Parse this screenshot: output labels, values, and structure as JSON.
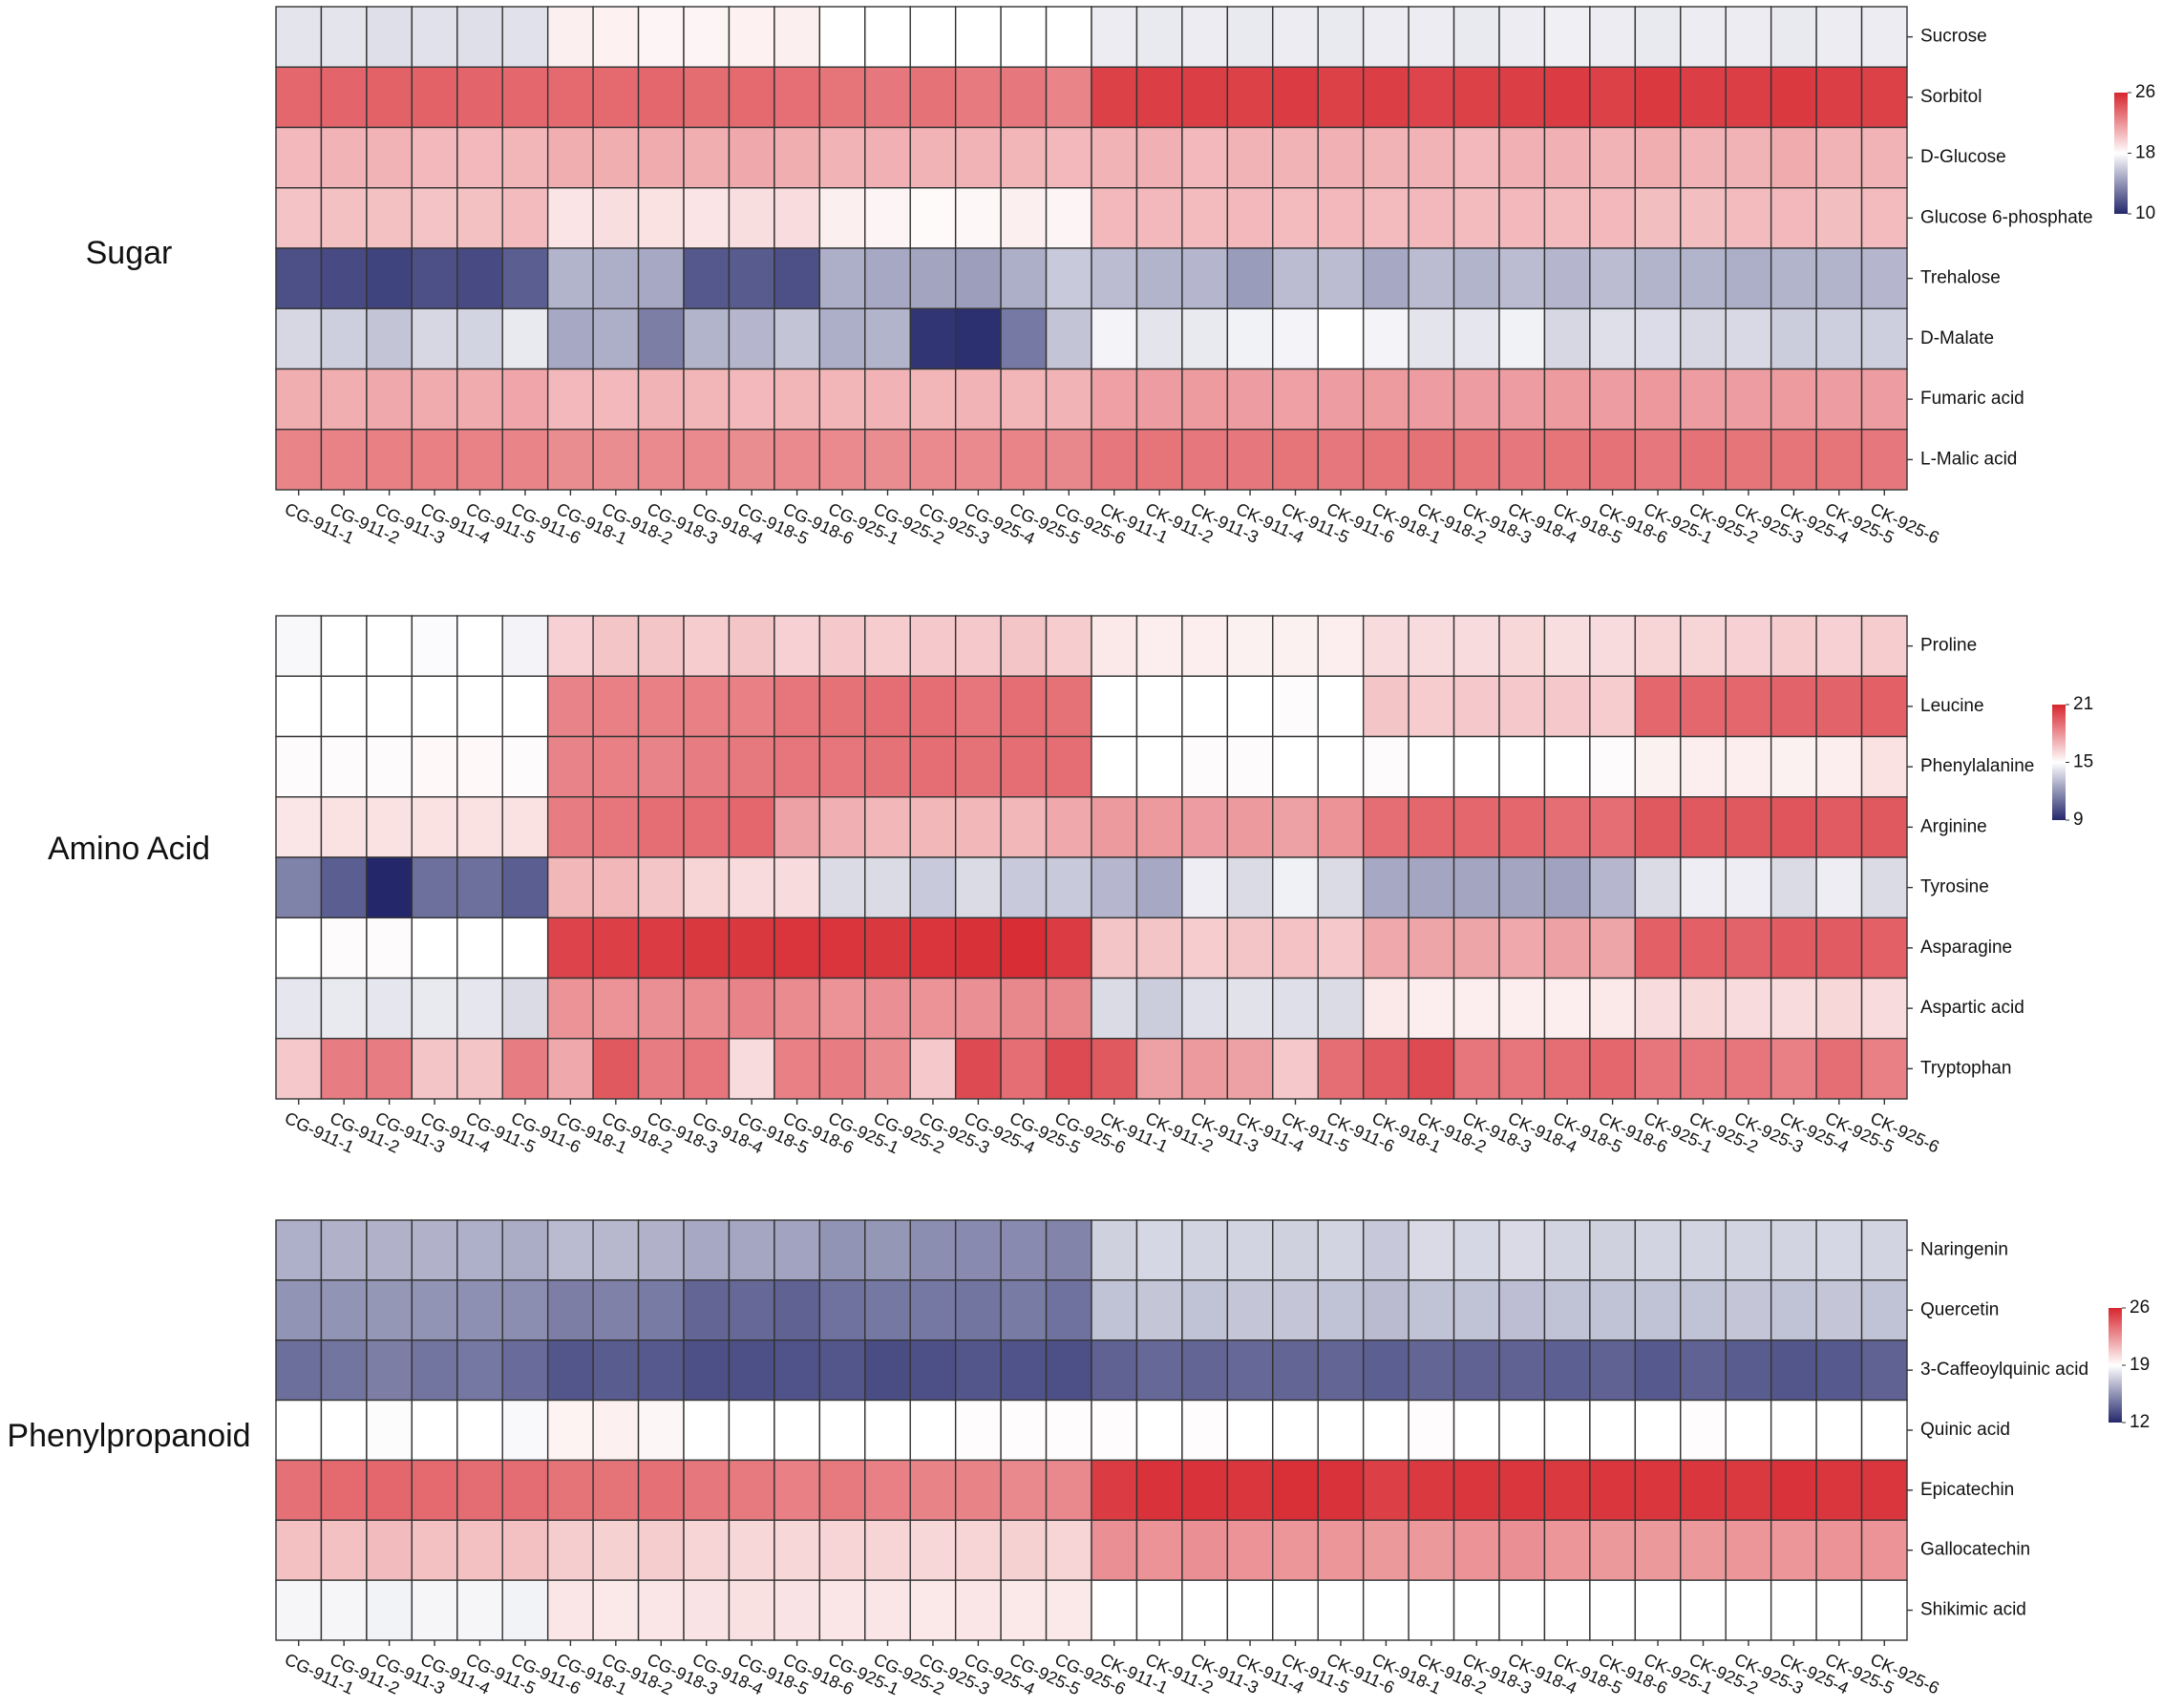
{
  "chart_data": [
    {
      "type": "heatmap",
      "title": "Sugar",
      "categories": [
        "CG-911-1",
        "CG-911-2",
        "CG-911-3",
        "CG-911-4",
        "CG-911-5",
        "CG-911-6",
        "CG-918-1",
        "CG-918-2",
        "CG-918-3",
        "CG-918-4",
        "CG-918-5",
        "CG-918-6",
        "CG-925-1",
        "CG-925-2",
        "CG-925-3",
        "CG-925-4",
        "CG-925-5",
        "CG-925-6",
        "CK-911-1",
        "CK-911-2",
        "CK-911-3",
        "CK-911-4",
        "CK-911-5",
        "CK-911-6",
        "CK-918-1",
        "CK-918-2",
        "CK-918-3",
        "CK-918-4",
        "CK-918-5",
        "CK-918-6",
        "CK-925-1",
        "CK-925-2",
        "CK-925-3",
        "CK-925-4",
        "CK-925-5",
        "CK-925-6"
      ],
      "rows": [
        "Sucrose",
        "Sorbitol",
        "D-Glucose",
        "Glucose 6-phosphate",
        "Trehalose",
        "D-Malate",
        "Fumaric acid",
        "L-Malic acid"
      ],
      "values": [
        [
          17,
          17,
          16.8,
          16.9,
          16.8,
          16.9,
          18.6,
          18.5,
          18.4,
          18.4,
          18.5,
          18.6,
          18,
          18,
          18,
          18,
          18,
          18,
          17.3,
          17.2,
          17.3,
          17.2,
          17.3,
          17.2,
          17.3,
          17.3,
          17.2,
          17.3,
          17.4,
          17.3,
          17.2,
          17.3,
          17.3,
          17.2,
          17.3,
          17.3
        ],
        [
          23.6,
          23.7,
          23.8,
          23.8,
          23.7,
          23.6,
          23.5,
          23.5,
          23.6,
          23.4,
          23.5,
          23.3,
          23.1,
          23,
          23.2,
          22.9,
          23,
          22.5,
          25,
          25.1,
          25.1,
          25,
          25.2,
          25,
          25.1,
          24.9,
          25,
          25.1,
          25.2,
          25,
          25.3,
          25.1,
          25.1,
          25.3,
          25.1,
          25
        ],
        [
          20.6,
          20.8,
          20.8,
          20.6,
          20.6,
          20.7,
          21,
          21,
          21.1,
          21,
          21.2,
          21,
          20.8,
          20.9,
          20.8,
          20.8,
          20.7,
          20.6,
          20.8,
          20.9,
          20.6,
          20.8,
          20.8,
          20.9,
          20.8,
          20.8,
          20.6,
          20.9,
          20.9,
          20.8,
          21,
          20.8,
          20.8,
          21.1,
          20.8,
          20.8
        ],
        [
          20.2,
          20.3,
          20.3,
          20.2,
          20.3,
          20.5,
          19,
          19.2,
          19.1,
          19,
          19.2,
          19.3,
          18.6,
          18.4,
          18.2,
          18.3,
          18.6,
          18.4,
          20.6,
          20.6,
          20.5,
          20.6,
          20.5,
          20.6,
          20.5,
          20.6,
          20.5,
          20.6,
          20.5,
          20.6,
          20.4,
          20.4,
          20.5,
          20.6,
          20.4,
          20.5
        ],
        [
          11.5,
          11.3,
          11,
          11.5,
          11.3,
          12,
          15.2,
          15,
          14.8,
          11.8,
          11.9,
          11.5,
          15,
          14.8,
          14.6,
          14.4,
          15,
          16,
          15.5,
          15.2,
          15.3,
          14.3,
          15.5,
          15.5,
          14.8,
          15.5,
          15.2,
          15.5,
          15.3,
          15.5,
          15.2,
          15.2,
          15,
          15.2,
          15.2,
          15.3
        ],
        [
          16.5,
          16.2,
          15.8,
          16.5,
          16.4,
          17.2,
          14.8,
          15,
          13.2,
          15.2,
          15.3,
          15.8,
          15,
          15.2,
          10.5,
          10.3,
          13,
          15.8,
          17.6,
          17,
          17.2,
          17.5,
          17.6,
          18,
          17.6,
          17,
          17.1,
          17.5,
          16.5,
          16.8,
          16.7,
          16.5,
          16.6,
          16.1,
          16.2,
          16.2
        ],
        [
          21,
          21,
          21.2,
          21.1,
          21.1,
          21.3,
          20.6,
          20.6,
          20.8,
          20.7,
          20.6,
          20.7,
          20.7,
          20.8,
          20.7,
          20.8,
          20.7,
          20.8,
          21.5,
          21.6,
          21.7,
          21.6,
          21.5,
          21.6,
          21.7,
          21.6,
          21.6,
          21.6,
          21.7,
          21.6,
          21.8,
          21.6,
          21.6,
          21.7,
          21.6,
          21.6
        ],
        [
          22.5,
          22.6,
          22.7,
          22.7,
          22.6,
          22.5,
          22.2,
          22.2,
          22.3,
          22.3,
          22.2,
          22.3,
          22.3,
          22.2,
          22.3,
          22.3,
          22.5,
          22.4,
          23,
          23.1,
          23,
          23,
          23.1,
          23,
          23.1,
          23.2,
          23.1,
          23,
          23.1,
          23.2,
          23,
          23.2,
          23.1,
          23.1,
          23.1,
          23
        ]
      ],
      "zlim": [
        10,
        26
      ],
      "zticks": [
        10,
        18,
        26
      ],
      "colors": [
        "#24286b",
        "#ffffff",
        "#d7262e"
      ]
    },
    {
      "type": "heatmap",
      "title": "Amino Acid",
      "categories": [
        "CG-911-1",
        "CG-911-2",
        "CG-911-3",
        "CG-911-4",
        "CG-911-5",
        "CG-911-6",
        "CG-918-1",
        "CG-918-2",
        "CG-918-3",
        "CG-918-4",
        "CG-918-5",
        "CG-918-6",
        "CG-925-1",
        "CG-925-2",
        "CG-925-3",
        "CG-925-4",
        "CG-925-5",
        "CG-925-6",
        "CK-911-1",
        "CK-911-2",
        "CK-911-3",
        "CK-911-4",
        "CK-911-5",
        "CK-911-6",
        "CK-918-1",
        "CK-918-2",
        "CK-918-3",
        "CK-918-4",
        "CK-918-5",
        "CK-918-6",
        "CK-925-1",
        "CK-925-2",
        "CK-925-3",
        "CK-925-4",
        "CK-925-5",
        "CK-925-6"
      ],
      "rows": [
        "Proline",
        "Leucine",
        "Phenylalanine",
        "Arginine",
        "Tyrosine",
        "Asparagine",
        "Aspartic acid",
        "Tryptophan"
      ],
      "values": [
        [
          14.8,
          15,
          15,
          14.9,
          15,
          14.7,
          16.3,
          16.6,
          16.6,
          16.4,
          16.6,
          16.3,
          16.5,
          16.4,
          16.5,
          16.5,
          16.6,
          16.4,
          15.6,
          15.5,
          15.5,
          15.4,
          15.4,
          15.5,
          16,
          16,
          16,
          16.1,
          15.9,
          16,
          16.2,
          16.2,
          16.3,
          16.4,
          16.3,
          16.4
        ],
        [
          15,
          15,
          15,
          15,
          15,
          15,
          18.4,
          18.5,
          18.5,
          18.5,
          18.5,
          18.8,
          18.9,
          19,
          19,
          18.8,
          19,
          18.9,
          15,
          15,
          15,
          15,
          15.1,
          15,
          16.6,
          16.4,
          16.5,
          16.5,
          16.5,
          16.4,
          19.2,
          19.2,
          19.2,
          19.3,
          19.3,
          19.4
        ],
        [
          15.1,
          15.1,
          15.1,
          15.2,
          15.2,
          15.1,
          18.4,
          18.5,
          18.4,
          18.6,
          18.7,
          18.8,
          18.8,
          18.9,
          19,
          18.9,
          19,
          19,
          15,
          15,
          15.1,
          15.1,
          15,
          15,
          15.1,
          15,
          15,
          15,
          15,
          15.1,
          15.4,
          15.5,
          15.5,
          15.4,
          15.5,
          15.8
        ],
        [
          15.7,
          15.8,
          15.8,
          15.8,
          15.8,
          15.8,
          18.6,
          18.8,
          19,
          19,
          19.2,
          17.6,
          17.2,
          17,
          17,
          17,
          17,
          17.4,
          17.8,
          17.8,
          17.7,
          17.8,
          17.6,
          18,
          19,
          19.2,
          19.2,
          19.2,
          19,
          19,
          19.6,
          19.6,
          19.6,
          19.7,
          19.5,
          19.6
        ],
        [
          11.5,
          10.5,
          9,
          11,
          11,
          10.5,
          17,
          17,
          16.6,
          16.2,
          16,
          16,
          14,
          14,
          13.5,
          14,
          13.5,
          13.5,
          13,
          12.6,
          14.5,
          14,
          14.6,
          14,
          12.6,
          12.5,
          12.5,
          12.5,
          12.4,
          13,
          14,
          14.5,
          14.5,
          14,
          14.5,
          14
        ],
        [
          15,
          15.1,
          15.1,
          15,
          15,
          15,
          20.2,
          20.3,
          20.4,
          20.5,
          20.5,
          20.6,
          20.6,
          20.5,
          20.6,
          20.7,
          20.8,
          20.4,
          16.6,
          16.6,
          16.4,
          16.6,
          16.7,
          16.5,
          17.4,
          17.5,
          17.5,
          17.4,
          17.6,
          17.5,
          19.4,
          19.4,
          19.3,
          19.5,
          19.5,
          19.4
        ],
        [
          14.3,
          14.4,
          14.3,
          14.4,
          14.3,
          14,
          18,
          18,
          18.1,
          18.2,
          18.4,
          18.2,
          18,
          18.1,
          18,
          18.1,
          18.3,
          18.3,
          14,
          13.6,
          14.1,
          14.2,
          14.1,
          14,
          15.6,
          15.5,
          15.5,
          15.5,
          15.5,
          15.6,
          16,
          16.1,
          16,
          16,
          16.1,
          16
        ],
        [
          16.5,
          18.6,
          18.6,
          16.6,
          16.6,
          18.6,
          17.4,
          19.6,
          18.6,
          18.8,
          16,
          18.5,
          18.6,
          18.2,
          16.5,
          20,
          19,
          20,
          19.6,
          17.6,
          17.8,
          17.6,
          16.5,
          19,
          19.5,
          20,
          18.8,
          18.8,
          19,
          19.2,
          18.8,
          18.8,
          18.8,
          18.5,
          19,
          18.5
        ]
      ],
      "zlim": [
        9,
        21
      ],
      "zticks": [
        9,
        15,
        21
      ],
      "colors": [
        "#24286b",
        "#ffffff",
        "#d7262e"
      ]
    },
    {
      "type": "heatmap",
      "title": "Phenylpropanoid",
      "categories": [
        "CG-911-1",
        "CG-911-2",
        "CG-911-3",
        "CG-911-4",
        "CG-911-5",
        "CG-911-6",
        "CG-918-1",
        "CG-918-2",
        "CG-918-3",
        "CG-918-4",
        "CG-918-5",
        "CG-918-6",
        "CG-925-1",
        "CG-925-2",
        "CG-925-3",
        "CG-925-4",
        "CG-925-5",
        "CG-925-6",
        "CK-911-1",
        "CK-911-2",
        "CK-911-3",
        "CK-911-4",
        "CK-911-5",
        "CK-911-6",
        "CK-918-1",
        "CK-918-2",
        "CK-918-3",
        "CK-918-4",
        "CK-918-5",
        "CK-918-6",
        "CK-925-1",
        "CK-925-2",
        "CK-925-3",
        "CK-925-4",
        "CK-925-5",
        "CK-925-6"
      ],
      "rows": [
        "Naringenin",
        "Quercetin",
        "3-Caffeoylquinic acid",
        "Quinic acid",
        "Epicatechin",
        "Gallocatechin",
        "Shikimic acid"
      ],
      "values": [
        [
          16.4,
          16.5,
          16.5,
          16.5,
          16.4,
          16.3,
          16.8,
          16.7,
          16.5,
          16.2,
          16.1,
          16,
          15.5,
          15.6,
          15.3,
          15.2,
          15.2,
          15,
          17.5,
          17.7,
          17.6,
          17.6,
          17.5,
          17.6,
          17.2,
          17.8,
          17.7,
          17.8,
          17.6,
          17.5,
          17.6,
          17.6,
          17.6,
          17.6,
          17.7,
          17.6
        ],
        [
          15.5,
          15.5,
          15.6,
          15.5,
          15.4,
          15.3,
          14.8,
          14.9,
          14.7,
          14,
          14.1,
          13.9,
          14.4,
          14.6,
          14.6,
          14.5,
          14.7,
          14.4,
          17,
          17.1,
          17,
          17.1,
          17.1,
          17,
          16.8,
          17,
          17,
          16.9,
          17,
          17,
          17,
          17,
          17.1,
          17,
          17.1,
          17
        ],
        [
          14.3,
          14.5,
          14.8,
          14.5,
          14.6,
          14.2,
          13.5,
          13.7,
          13.6,
          13.3,
          13.3,
          13.4,
          13.5,
          13.2,
          13.3,
          13.5,
          13.4,
          13.3,
          13.9,
          14.1,
          14,
          14.1,
          14,
          14,
          13.8,
          14,
          13.9,
          13.9,
          13.8,
          13.9,
          13.6,
          13.9,
          13.7,
          13.5,
          13.6,
          13.9
        ],
        [
          19,
          19,
          18.9,
          19,
          19,
          18.8,
          19.4,
          19.5,
          19.3,
          19,
          19,
          19,
          19,
          19,
          19,
          19.1,
          19.1,
          19.1,
          19.1,
          19,
          19.1,
          19,
          19,
          19,
          19,
          19.1,
          19,
          19,
          19,
          19,
          19,
          19.1,
          19,
          19,
          19,
          19
        ],
        [
          23.6,
          23.8,
          23.9,
          23.8,
          23.7,
          23.7,
          23.5,
          23.5,
          23.6,
          23.4,
          23.3,
          23.1,
          23.3,
          23.1,
          23,
          23,
          22.8,
          22.8,
          25.3,
          25.6,
          25.6,
          25.5,
          25.7,
          25.6,
          25.2,
          25.4,
          25.5,
          25.5,
          25.4,
          25.5,
          25.5,
          25.5,
          25.4,
          25.6,
          25.5,
          25.5
        ],
        [
          21,
          21,
          21.2,
          21,
          21,
          21,
          20.6,
          20.5,
          20.6,
          20.4,
          20.3,
          20.3,
          20.4,
          20.4,
          20.3,
          20.4,
          20.5,
          20.4,
          22.6,
          22.5,
          22.6,
          22.5,
          22.4,
          22.4,
          22.3,
          22.3,
          22.5,
          22.6,
          22.4,
          22.3,
          22.3,
          22.3,
          22.4,
          22.4,
          22.5,
          22.5
        ],
        [
          18.7,
          18.7,
          18.6,
          18.7,
          18.7,
          18.6,
          19.8,
          19.7,
          19.8,
          19.9,
          20,
          19.9,
          19.8,
          19.8,
          19.7,
          19.8,
          19.7,
          19.7,
          19,
          19,
          19,
          19,
          19,
          19,
          19,
          19,
          19,
          19,
          19,
          19,
          19,
          19,
          19,
          19,
          19,
          19
        ]
      ],
      "zlim": [
        12,
        26
      ],
      "zticks": [
        12,
        19,
        26
      ],
      "colors": [
        "#24286b",
        "#ffffff",
        "#d7262e"
      ]
    }
  ]
}
